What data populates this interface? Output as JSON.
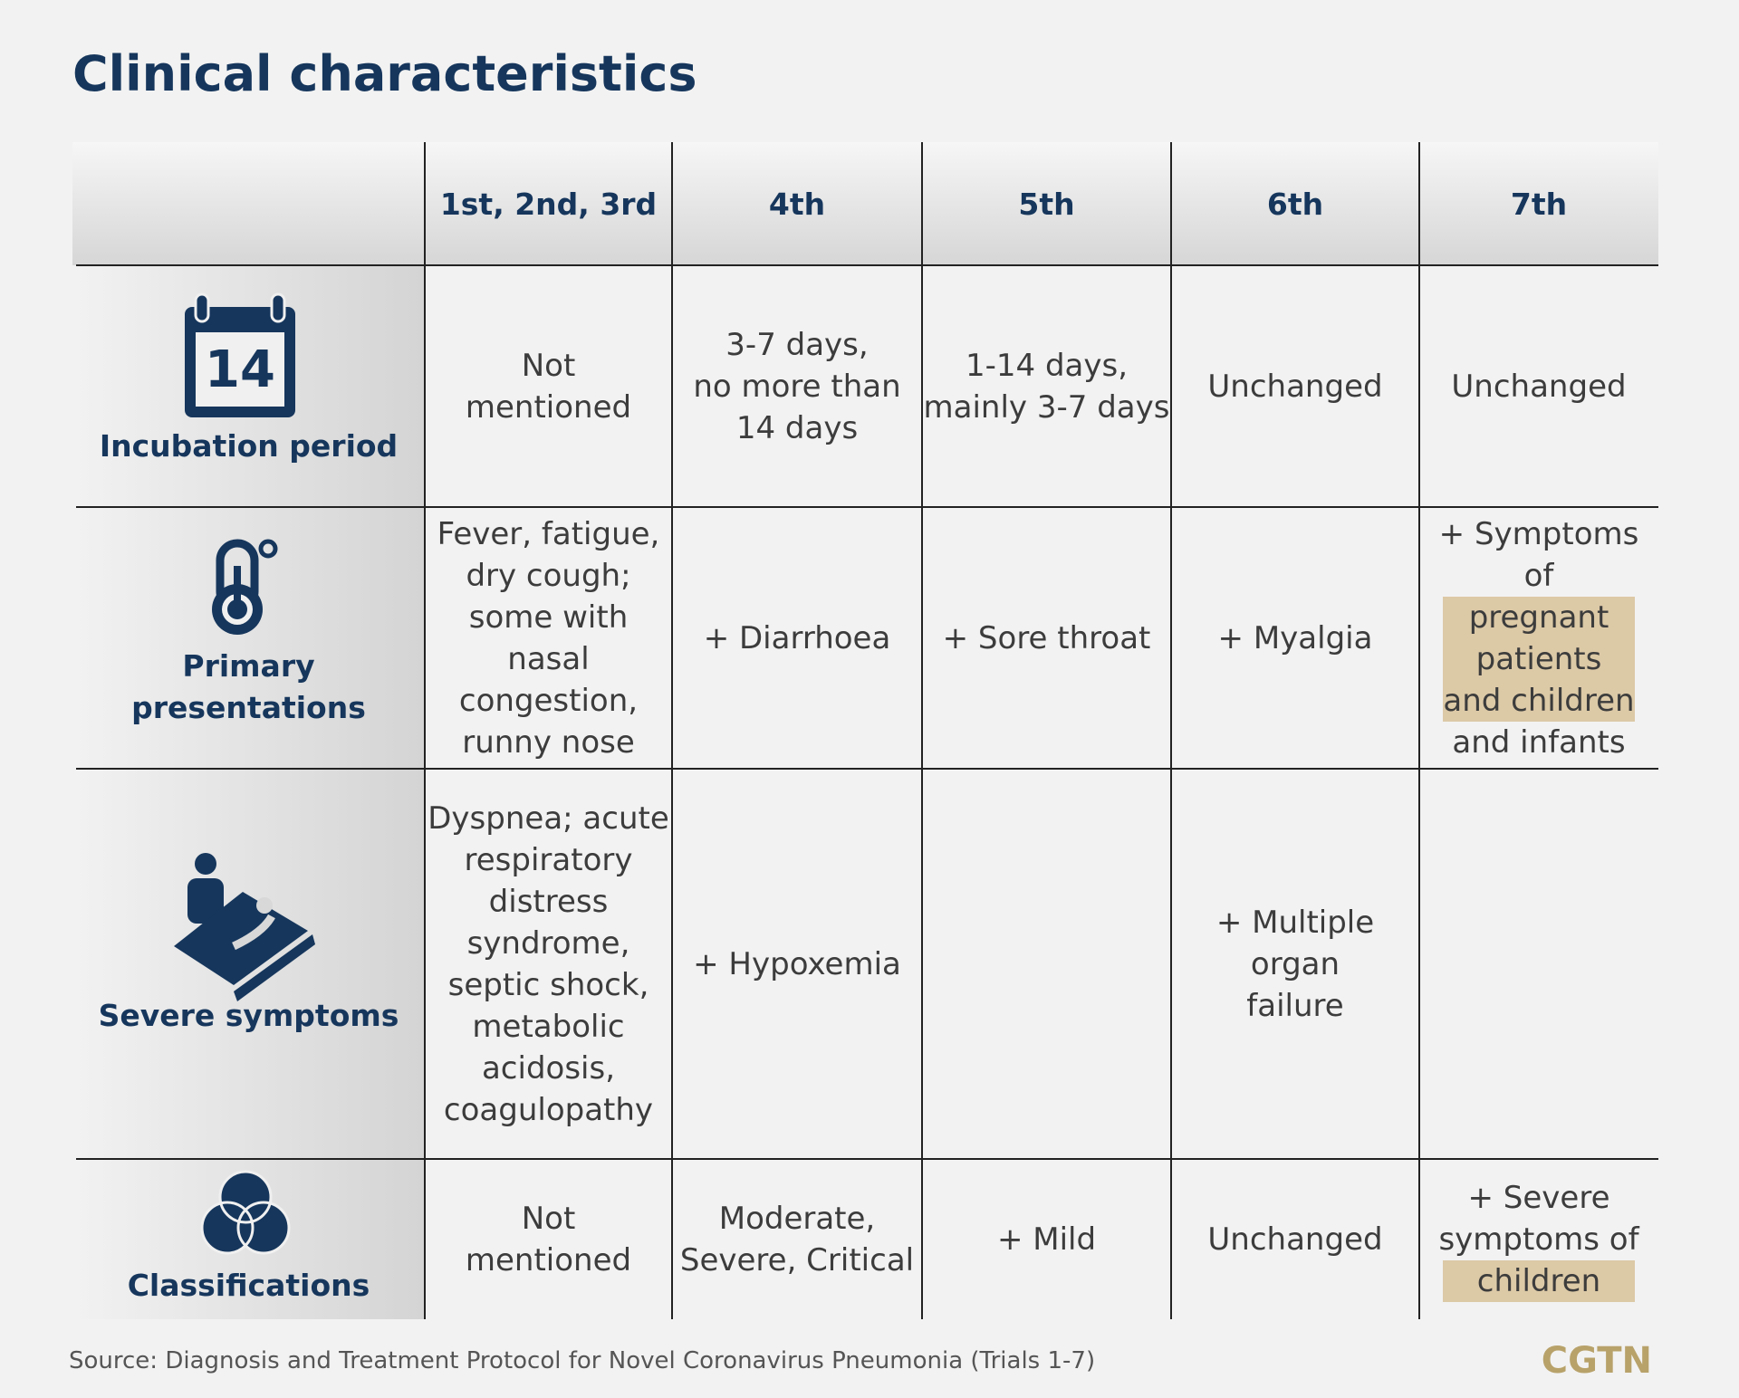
{
  "title": "Clinical characteristics",
  "table": {
    "header": [
      "1st, 2nd, 3rd",
      "4th",
      "5th",
      "6th",
      "7th"
    ],
    "rows": [
      {
        "label": [
          "Incubation period"
        ],
        "icon_text": "14",
        "cells": [
          [
            "Not",
            "mentioned"
          ],
          [
            "3-7 days,",
            "no more than",
            "14 days"
          ],
          [
            "1-14 days,",
            "mainly 3-7 days"
          ],
          [
            "Unchanged"
          ],
          [
            "Unchanged"
          ]
        ]
      },
      {
        "label": [
          "Primary",
          "presentations"
        ],
        "cells": [
          [
            "Fever, fatigue,",
            "dry cough;",
            "some with nasal",
            "congestion,",
            "runny nose"
          ],
          [
            "+ Diarrhoea"
          ],
          [
            "+ Sore throat"
          ],
          [
            "+ Myalgia"
          ],
          [
            "+ Symptoms of",
            {
              "text": "pregnant",
              "highlight": true
            },
            {
              "text": "patients",
              "highlight": true
            },
            {
              "text": "and children",
              "highlight": true
            },
            "and infants"
          ]
        ]
      },
      {
        "label": [
          "Severe symptoms"
        ],
        "cells": [
          [
            "Dyspnea; acute",
            "respiratory",
            "distress",
            "syndrome,",
            "septic shock,",
            "metabolic",
            "acidosis,",
            "coagulopathy"
          ],
          [
            "+ Hypoxemia"
          ],
          [],
          [
            "+ Multiple organ",
            "failure"
          ],
          []
        ]
      },
      {
        "label": [
          "Classifications"
        ],
        "cells": [
          [
            "Not",
            "mentioned"
          ],
          [
            "Moderate,",
            "Severe, Critical"
          ],
          [
            "+ Mild"
          ],
          [
            "Unchanged"
          ],
          [
            "+ Severe",
            "symptoms of",
            {
              "text": "children",
              "highlight": true
            }
          ]
        ]
      }
    ]
  },
  "source": "Source: Diagnosis and Treatment Protocol for Novel Coronavirus Pneumonia (Trials 1-7)",
  "brand": "CGTN"
}
